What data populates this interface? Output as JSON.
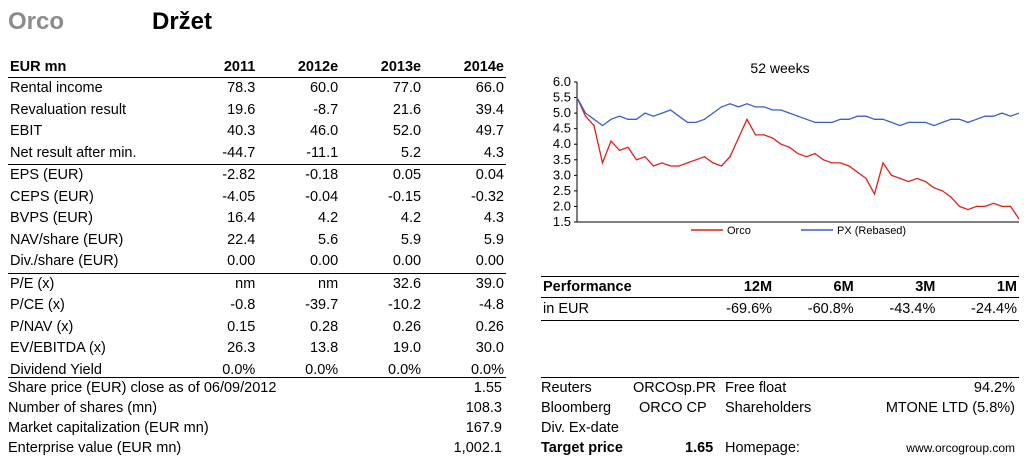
{
  "header": {
    "company": "Orco",
    "recommendation": "Držet"
  },
  "financials": {
    "columns": [
      "EUR mn",
      "2011",
      "2012e",
      "2013e",
      "2014e"
    ],
    "rows": [
      {
        "label": "Rental income",
        "values": [
          "78.3",
          "60.0",
          "77.0",
          "66.0"
        ],
        "sep": false
      },
      {
        "label": "Revaluation result",
        "values": [
          "19.6",
          "-8.7",
          "21.6",
          "39.4"
        ],
        "sep": false
      },
      {
        "label": "EBIT",
        "values": [
          "40.3",
          "46.0",
          "52.0",
          "49.7"
        ],
        "sep": false
      },
      {
        "label": "Net result after min.",
        "values": [
          "-44.7",
          "-11.1",
          "5.2",
          "4.3"
        ],
        "sep": true
      },
      {
        "label": "EPS (EUR)",
        "values": [
          "-2.82",
          "-0.18",
          "0.05",
          "0.04"
        ],
        "sep": false
      },
      {
        "label": "CEPS (EUR)",
        "values": [
          "-4.05",
          "-0.04",
          "-0.15",
          "-0.32"
        ],
        "sep": false
      },
      {
        "label": "BVPS (EUR)",
        "values": [
          "16.4",
          "4.2",
          "4.2",
          "4.3"
        ],
        "sep": false
      },
      {
        "label": "NAV/share (EUR)",
        "values": [
          "22.4",
          "5.6",
          "5.9",
          "5.9"
        ],
        "sep": false
      },
      {
        "label": "Div./share (EUR)",
        "values": [
          "0.00",
          "0.00",
          "0.00",
          "0.00"
        ],
        "sep": true
      },
      {
        "label": "P/E (x)",
        "values": [
          "nm",
          "nm",
          "32.6",
          "39.0"
        ],
        "sep": false
      },
      {
        "label": "P/CE (x)",
        "values": [
          "-0.8",
          "-39.7",
          "-10.2",
          "-4.8"
        ],
        "sep": false
      },
      {
        "label": "P/NAV (x)",
        "values": [
          "0.15",
          "0.28",
          "0.26",
          "0.26"
        ],
        "sep": false
      },
      {
        "label": "EV/EBITDA (x)",
        "values": [
          "26.3",
          "13.8",
          "19.0",
          "30.0"
        ],
        "sep": false
      },
      {
        "label": "Dividend Yield",
        "values": [
          "0.0%",
          "0.0%",
          "0.0%",
          "0.0%"
        ],
        "sep": false
      }
    ]
  },
  "share_info": {
    "price_label": "Share price (EUR) close as of 06/09/2012",
    "price_value": "1.55",
    "shares_label": "Number of shares (mn)",
    "shares_value": "108.3",
    "mcap_label": "Market capitalization (EUR mn)",
    "mcap_value": "167.9",
    "ev_label": "Enterprise value (EUR mn)",
    "ev_value": "1,002.1"
  },
  "company_info": {
    "reuters_label": "Reuters",
    "reuters_value": "ORCOsp.PR",
    "freefloat_label": "Free float",
    "freefloat_value": "94.2%",
    "bloomberg_label": "Bloomberg",
    "bloomberg_value": "ORCO CP",
    "shareholders_label": "Shareholders",
    "shareholders_value": "MTONE LTD (5.8%)",
    "exdate_label": "Div. Ex-date",
    "target_label": "Target price",
    "target_value": "1.65",
    "homepage_label": "Homepage:",
    "homepage_value": "www.orcogroup.com"
  },
  "performance": {
    "header_label": "Performance",
    "periods": [
      "12M",
      "6M",
      "3M",
      "1M"
    ],
    "row_label": "in EUR",
    "values": [
      "-69.6%",
      "-60.8%",
      "-43.4%",
      "-24.4%"
    ]
  },
  "chart_data": {
    "type": "line",
    "title": "52 weeks",
    "ylim": [
      1.5,
      6.0
    ],
    "yticks": [
      "1.5",
      "2.0",
      "2.5",
      "3.0",
      "3.5",
      "4.0",
      "4.5",
      "5.0",
      "5.5",
      "6.0"
    ],
    "xlabel": "",
    "ylabel": "",
    "grid": false,
    "legend_position": "bottom",
    "x": [
      0,
      1,
      2,
      3,
      4,
      5,
      6,
      7,
      8,
      9,
      10,
      11,
      12,
      13,
      14,
      15,
      16,
      17,
      18,
      19,
      20,
      21,
      22,
      23,
      24,
      25,
      26,
      27,
      28,
      29,
      30,
      31,
      32,
      33,
      34,
      35,
      36,
      37,
      38,
      39,
      40,
      41,
      42,
      43,
      44,
      45,
      46,
      47,
      48,
      49,
      50,
      51,
      52
    ],
    "series": [
      {
        "name": "Orco",
        "color": "#e0201a",
        "values": [
          5.5,
          4.9,
          4.6,
          3.4,
          4.1,
          3.8,
          3.9,
          3.5,
          3.6,
          3.3,
          3.4,
          3.3,
          3.3,
          3.4,
          3.5,
          3.6,
          3.4,
          3.3,
          3.6,
          4.2,
          4.8,
          4.3,
          4.3,
          4.2,
          4.0,
          3.9,
          3.7,
          3.6,
          3.7,
          3.5,
          3.4,
          3.4,
          3.3,
          3.1,
          2.9,
          2.4,
          3.4,
          3.0,
          2.9,
          2.8,
          2.9,
          2.8,
          2.6,
          2.5,
          2.3,
          2.0,
          1.9,
          2.0,
          2.0,
          2.1,
          2.0,
          2.0,
          1.6
        ]
      },
      {
        "name": "PX (Rebased)",
        "color": "#3a5fcd",
        "values": [
          5.5,
          5.0,
          4.8,
          4.6,
          4.8,
          4.9,
          4.8,
          4.8,
          5.0,
          4.9,
          5.0,
          5.1,
          4.9,
          4.7,
          4.7,
          4.8,
          5.0,
          5.2,
          5.3,
          5.2,
          5.3,
          5.2,
          5.2,
          5.1,
          5.1,
          5.0,
          4.9,
          4.8,
          4.7,
          4.7,
          4.7,
          4.8,
          4.8,
          4.9,
          4.9,
          4.8,
          4.8,
          4.7,
          4.6,
          4.7,
          4.7,
          4.7,
          4.6,
          4.7,
          4.8,
          4.8,
          4.7,
          4.8,
          4.9,
          4.9,
          5.0,
          4.9,
          5.0
        ]
      }
    ]
  }
}
